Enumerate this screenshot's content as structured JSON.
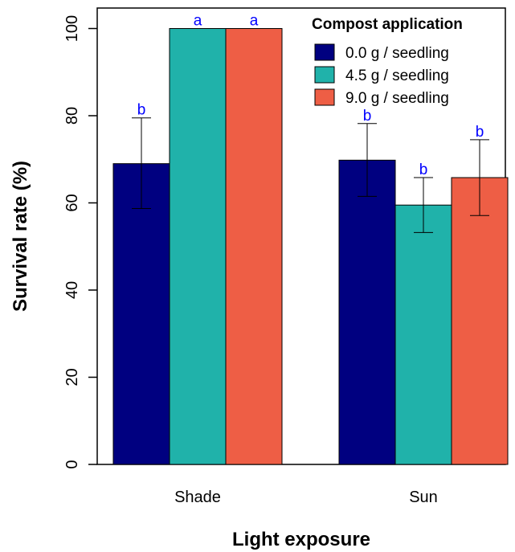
{
  "chart_data": {
    "type": "bar",
    "categories": [
      "Shade",
      "Sun"
    ],
    "series": [
      {
        "name": "0.0 g / seedling",
        "color": "#000080",
        "values": [
          69,
          69.8
        ],
        "error_low": [
          58.7,
          61.5
        ],
        "error_high": [
          79.5,
          78.2
        ],
        "labels": [
          "b",
          "b"
        ]
      },
      {
        "name": "4.5 g / seedling",
        "color": "#20B2AA",
        "values": [
          100,
          59.5
        ],
        "error_low": [
          null,
          53.2
        ],
        "error_high": [
          null,
          65.8
        ],
        "labels": [
          "a",
          "b"
        ]
      },
      {
        "name": "9.0 g / seedling",
        "color": "#EE5E45",
        "values": [
          100,
          65.8
        ],
        "error_low": [
          null,
          57.1
        ],
        "error_high": [
          null,
          74.5
        ],
        "labels": [
          "a",
          "b"
        ]
      }
    ],
    "xlabel": "Light exposure",
    "ylabel": "Survival rate (%)",
    "ylim": [
      0,
      105
    ],
    "yticks": [
      0,
      20,
      40,
      60,
      80,
      100
    ],
    "legend_title": "Compost application",
    "legend_position": "top-right",
    "grid": false
  }
}
